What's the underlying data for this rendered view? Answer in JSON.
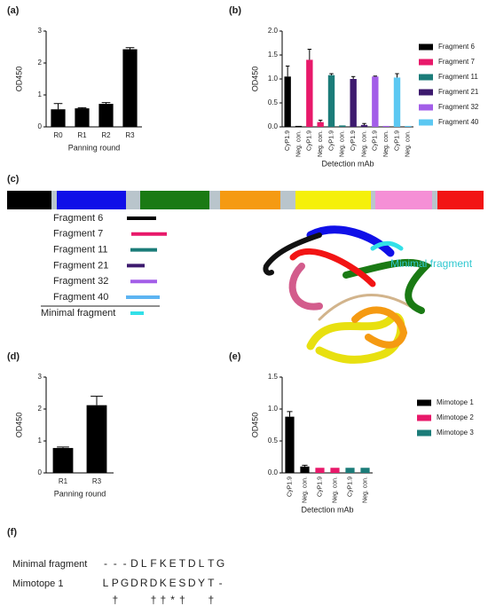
{
  "chart_data": [
    {
      "type": "bar",
      "panel_label": "(a)",
      "categories": [
        "R0",
        "R1",
        "R2",
        "R3"
      ],
      "values": [
        0.55,
        0.58,
        0.72,
        2.43
      ],
      "errors": [
        0.18,
        0.02,
        0.04,
        0.05
      ],
      "color": "#000000",
      "ylim": [
        0,
        3
      ],
      "yticks": [
        0,
        1,
        2,
        3
      ],
      "y_label": "OD450",
      "x_label": "Panning round"
    },
    {
      "type": "grouped_bar",
      "panel_label": "(b)",
      "categories": [
        "CyP1.9",
        "Neg. con."
      ],
      "series": [
        {
          "name": "Fragment 6",
          "color": "#000000",
          "values": [
            1.05,
            0.02
          ],
          "errors": [
            0.22,
            null
          ]
        },
        {
          "name": "Fragment 7",
          "color": "#e8196a",
          "values": [
            1.4,
            0.1
          ],
          "errors": [
            0.22,
            0.04
          ]
        },
        {
          "name": "Fragment 11",
          "color": "#1b7c79",
          "values": [
            1.08,
            0.03
          ],
          "errors": [
            0.03,
            null
          ]
        },
        {
          "name": "Fragment 21",
          "color": "#3d1a6e",
          "values": [
            1.0,
            0.04
          ],
          "errors": [
            0.05,
            0.03
          ]
        },
        {
          "name": "Fragment 32",
          "color": "#a35ee8",
          "values": [
            1.05,
            0.02
          ],
          "errors": [
            0.01,
            null
          ]
        },
        {
          "name": "Fragment 40",
          "color": "#5cc8f2",
          "values": [
            1.03,
            0.02
          ],
          "errors": [
            0.08,
            null
          ]
        }
      ],
      "ylim": [
        0,
        2
      ],
      "yticks": [
        {
          "value": 0,
          "label": "0.0"
        },
        0.5,
        {
          "value": 1,
          "label": "1.0"
        },
        1.5,
        {
          "value": 2,
          "label": "2.0"
        }
      ],
      "y_label": "OD450",
      "x_label": "Detection mAb",
      "legend": "right"
    },
    {
      "type": "bar",
      "panel_label": "(d)",
      "categories": [
        "R1",
        "R3"
      ],
      "values": [
        0.78,
        2.12
      ],
      "errors": [
        0.03,
        0.28
      ],
      "color": "#000000",
      "ylim": [
        0,
        3
      ],
      "yticks": [
        0,
        1,
        2,
        3
      ],
      "y_label": "OD450",
      "x_label": "Panning round"
    },
    {
      "type": "grouped_bar",
      "panel_label": "(e)",
      "categories": [
        "CyP1.9",
        "Neg. con."
      ],
      "series": [
        {
          "name": "Mimotope 1",
          "color": "#000000",
          "values": [
            0.88,
            0.1
          ],
          "errors": [
            0.08,
            0.02
          ]
        },
        {
          "name": "Mimotope 2",
          "color": "#e8196a",
          "values": [
            0.08,
            0.08
          ],
          "errors": [
            null,
            null
          ]
        },
        {
          "name": "Mimotope 3",
          "color": "#1b7c79",
          "values": [
            0.08,
            0.08
          ],
          "errors": [
            null,
            null
          ]
        }
      ],
      "ylim": [
        0,
        1.5
      ],
      "yticks": [
        {
          "value": 0,
          "label": "0.0"
        },
        0.5,
        {
          "value": 1,
          "label": "1.0"
        },
        1.5
      ],
      "y_label": "OD450",
      "x_label": "Detection mAb",
      "legend": "right"
    }
  ],
  "diagram": {
    "panel_label": "(c)",
    "fragments": [
      {
        "label": "Fragment 6",
        "color": "#000000"
      },
      {
        "label": "Fragment 7",
        "color": "#e8196a"
      },
      {
        "label": "Fragment 11",
        "color": "#1b7c79"
      },
      {
        "label": "Fragment 21",
        "color": "#3d1a6e"
      },
      {
        "label": "Fragment 32",
        "color": "#a35ee8"
      },
      {
        "label": "Fragment 40",
        "color": "#5cb4f2"
      }
    ],
    "minimal_fragment": {
      "label": "Minimal fragment",
      "color": "#33e0e8"
    },
    "structure_label": "Minimal fragment"
  },
  "alignment": {
    "panel_label": "(f)",
    "rows": [
      {
        "name": "Minimal fragment",
        "residues": [
          "-",
          "-",
          "-",
          "D",
          "L",
          "F",
          "K",
          "E",
          "T",
          "D",
          "L",
          "T",
          "G"
        ]
      },
      {
        "name": "Mimotope 1",
        "residues": [
          "L",
          "P",
          "G",
          "D",
          "R",
          "D",
          "K",
          "E",
          "S",
          "D",
          "Y",
          "T",
          "-"
        ]
      }
    ],
    "marks": [
      null,
      "†",
      null,
      null,
      null,
      "†",
      "†",
      "*",
      "†",
      null,
      null,
      "†",
      null
    ]
  }
}
